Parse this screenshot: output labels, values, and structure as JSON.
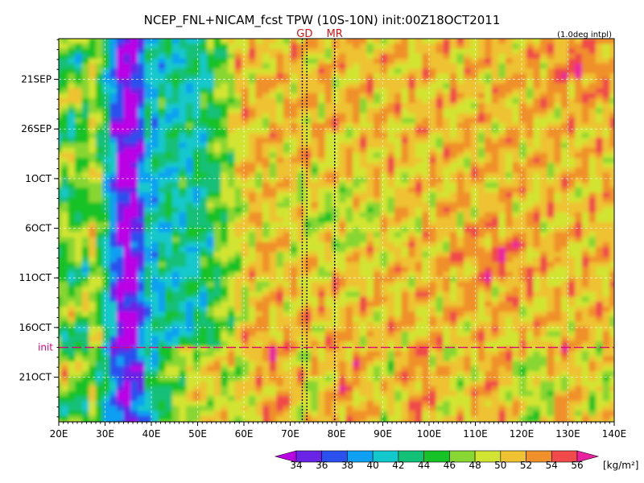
{
  "chart_data": {
    "type": "heatmap",
    "title": "NCEP_FNL+NICAM_fcst TPW (10S-10N) init:00Z18OCT2011",
    "resolution_note": "(1.0deg intpl)",
    "x_ticks": [
      "20E",
      "30E",
      "40E",
      "50E",
      "60E",
      "70E",
      "80E",
      "90E",
      "100E",
      "110E",
      "120E",
      "130E",
      "140E"
    ],
    "xlim": [
      20,
      140
    ],
    "y_ticks": [
      "21SEP",
      "26SEP",
      "1OCT",
      "6OCT",
      "11OCT",
      "16OCT",
      "21OCT"
    ],
    "y_tick_days": [
      21,
      26,
      31,
      36,
      41,
      46,
      51
    ],
    "ylim_days": [
      16.9,
      55.5
    ],
    "y_direction": "time increases downward",
    "init_label": "init",
    "init_day": 48,
    "station_lines": [
      {
        "label": "GD",
        "lon1": 72.6,
        "lon2": 73.6
      },
      {
        "label": "MR",
        "lon1": 79.6,
        "lon2": 79.6
      }
    ],
    "colorbar": {
      "levels": [
        34,
        36,
        38,
        40,
        42,
        44,
        46,
        48,
        50,
        52,
        54,
        56
      ],
      "colors": [
        "#bb00e6",
        "#6a24e6",
        "#2a50ee",
        "#0ea0f2",
        "#12c8cc",
        "#12c078",
        "#17c227",
        "#88d632",
        "#d2e432",
        "#eec232",
        "#f0902b",
        "#f04a4a",
        "#eb22a0"
      ],
      "unit": "[kg/m²]"
    },
    "grid": true
  }
}
